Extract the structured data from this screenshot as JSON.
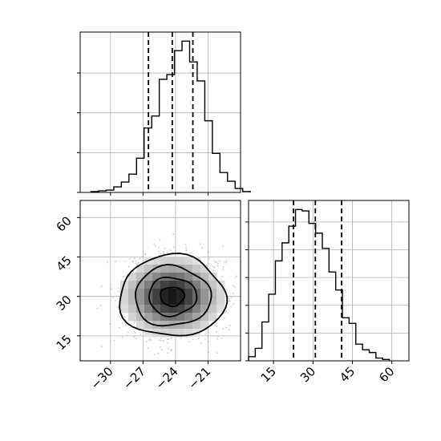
{
  "colors": {
    "line": "#000000",
    "grid": "#b0b0b0",
    "scatter": "#808080"
  },
  "chart_data": [
    {
      "type": "histogram",
      "panel": "top-left",
      "xlim": [
        -32.8,
        -18.0
      ],
      "bin_start": -31.8,
      "bin_width": 0.7,
      "counts": [
        1,
        2,
        3,
        7,
        13,
        23,
        43,
        81,
        96,
        142,
        148,
        178,
        190,
        164,
        140,
        90,
        49,
        25,
        14,
        5,
        1
      ],
      "quantiles": [
        -26.5,
        -24.3,
        -22.4
      ],
      "grid": true
    },
    {
      "type": "histogram",
      "panel": "bottom-right",
      "xlim": [
        5.5,
        66.5
      ],
      "x_ticks": [
        "15",
        "30",
        "45",
        "60"
      ],
      "bin_start": 5.5,
      "bin_width": 2.55,
      "counts": [
        3,
        9,
        28,
        48,
        72,
        85,
        97,
        109,
        108,
        99,
        92,
        81,
        64,
        51,
        31,
        27,
        12,
        8,
        6,
        2,
        1
      ],
      "quantiles": [
        22.6,
        30.9,
        40.9
      ],
      "grid": true
    },
    {
      "type": "heatmap",
      "panel": "bottom-left",
      "xlim": [
        -32.8,
        -18.0
      ],
      "ylim": [
        5.5,
        66.5
      ],
      "x_ticks": [
        "−30",
        "−27",
        "−24",
        "−21"
      ],
      "y_ticks": [
        "15",
        "30",
        "45",
        "60"
      ],
      "center": [
        -24.3,
        30.0
      ],
      "contours": [
        {
          "rx": 4.9,
          "ry": 15.5
        },
        {
          "rx": 3.5,
          "ry": 11.4
        },
        {
          "rx": 2.2,
          "ry": 7.3
        },
        {
          "rx": 1.1,
          "ry": 3.6
        }
      ],
      "grid": true
    }
  ]
}
